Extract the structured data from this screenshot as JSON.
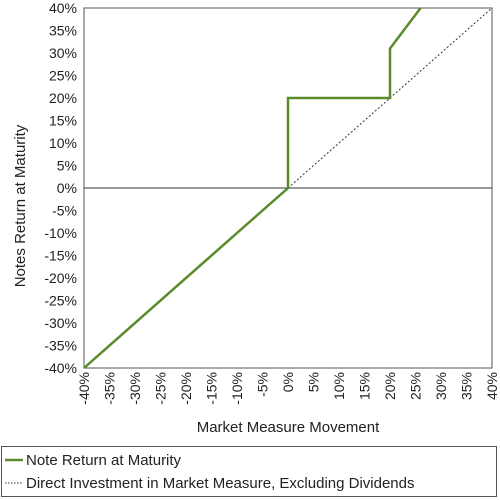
{
  "chart_data": {
    "type": "line",
    "title": "",
    "xlabel": "Market Measure Movement",
    "ylabel": "Notes Return at Maturity",
    "xlim": [
      -40,
      40
    ],
    "ylim": [
      -40,
      40
    ],
    "x_ticks": [
      "-40%",
      "-35%",
      "-30%",
      "-25%",
      "-20%",
      "-15%",
      "-10%",
      "-5%",
      "0%",
      "5%",
      "10%",
      "15%",
      "20%",
      "25%",
      "30%",
      "35%",
      "40%"
    ],
    "y_ticks": [
      "40%",
      "35%",
      "30%",
      "25%",
      "20%",
      "15%",
      "10%",
      "5%",
      "0%",
      "-5%",
      "-10%",
      "-15%",
      "-20%",
      "-25%",
      "-30%",
      "-35%",
      "-40%"
    ],
    "grid": false,
    "legend_position": "bottom",
    "series": [
      {
        "name": "Note Return at Maturity",
        "color": "#5a8a2a",
        "style": "solid",
        "points": [
          [
            -40,
            -40
          ],
          [
            0,
            0
          ],
          [
            0,
            20
          ],
          [
            20,
            20
          ],
          [
            20,
            31
          ],
          [
            26,
            40
          ]
        ]
      },
      {
        "name": "Direct Investment in Market Measure, Excluding Dividends",
        "color": "#333333",
        "style": "dotted",
        "points": [
          [
            -40,
            -40
          ],
          [
            40,
            40
          ]
        ]
      }
    ]
  }
}
